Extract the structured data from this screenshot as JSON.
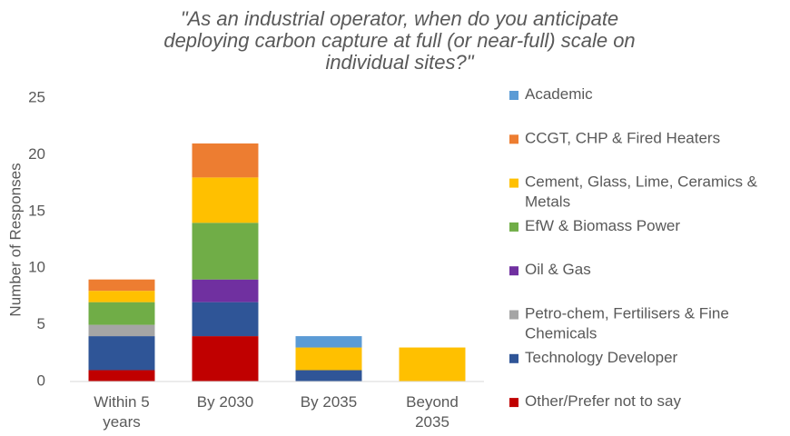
{
  "chart_data": {
    "type": "stacked_bar",
    "title": "\"As an industrial operator, when do you anticipate deploying carbon capture at full (or near-full) scale on individual sites?\"",
    "y_label": "Number of Responses",
    "categories": [
      "Within 5 years",
      "By 2030",
      "By 2035",
      "Beyond 2035"
    ],
    "series": [
      {
        "name": "Other/Prefer not to say",
        "color": "#c00000",
        "values": [
          1,
          4,
          0,
          0
        ]
      },
      {
        "name": "Technology Developer",
        "color": "#2f5597",
        "values": [
          3,
          3,
          1,
          0
        ]
      },
      {
        "name": "Petro-chem, Fertilisers & Fine Chemicals",
        "color": "#a5a5a5",
        "values": [
          1,
          0,
          0,
          0
        ]
      },
      {
        "name": "Oil & Gas",
        "color": "#7030a0",
        "values": [
          0,
          2,
          0,
          0
        ]
      },
      {
        "name": "EfW & Biomass Power",
        "color": "#70ad47",
        "values": [
          2,
          5,
          0,
          0
        ]
      },
      {
        "name": "Cement, Glass, Lime, Ceramics & Metals",
        "color": "#ffc000",
        "values": [
          1,
          4,
          2,
          3
        ]
      },
      {
        "name": "CCGT, CHP & Fired Heaters",
        "color": "#ed7d31",
        "values": [
          1,
          3,
          0,
          0
        ]
      },
      {
        "name": "Academic",
        "color": "#5b9bd5",
        "values": [
          0,
          0,
          1,
          0
        ]
      }
    ],
    "ylim": [
      0,
      25
    ],
    "yticks": [
      0,
      5,
      10,
      15,
      20,
      25
    ],
    "grid": false,
    "legend": "right"
  }
}
